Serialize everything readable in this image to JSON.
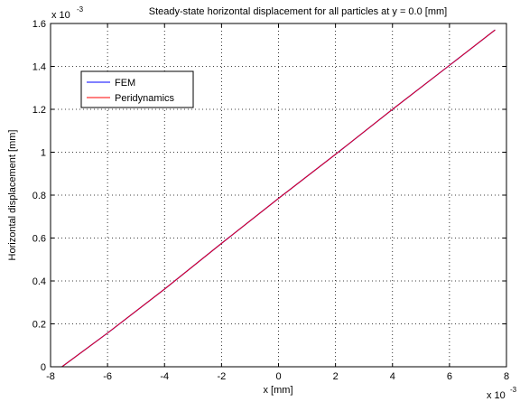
{
  "chart_data": {
    "type": "line",
    "title": "Steady-state horizontal displacement for all particles at y = 0.0 [mm]",
    "xlabel": "x [mm]",
    "ylabel": "Horizontal displacement [mm]",
    "x_multiplier": {
      "base": "x 10",
      "exp": "-3"
    },
    "y_multiplier": {
      "base": "x 10",
      "exp": "-3"
    },
    "xlim": [
      -8,
      8
    ],
    "ylim": [
      0,
      1.6
    ],
    "xticks": [
      -8,
      -6,
      -4,
      -2,
      0,
      2,
      4,
      6,
      8
    ],
    "yticks": [
      0,
      0.2,
      0.4,
      0.6,
      0.8,
      1,
      1.2,
      1.4,
      1.6
    ],
    "xtick_labels": [
      "-8",
      "-6",
      "-4",
      "-2",
      "0",
      "2",
      "4",
      "6",
      "8"
    ],
    "ytick_labels": [
      "0",
      "0.2",
      "0.4",
      "0.6",
      "0.8",
      "1",
      "1.2",
      "1.4",
      "1.6"
    ],
    "grid": true,
    "legend_position": "top-left",
    "series": [
      {
        "name": "FEM",
        "color": "#0000ff",
        "x": [
          -7.6,
          -6,
          -4,
          -2,
          0,
          2,
          4,
          6,
          7.6
        ],
        "values": [
          0.0,
          0.157,
          0.362,
          0.575,
          0.785,
          0.99,
          1.2,
          1.405,
          1.57
        ]
      },
      {
        "name": "Peridynamics",
        "color": "#ff0000",
        "x": [
          -7.6,
          -6,
          -4,
          -2,
          0,
          2,
          4,
          6,
          7.6
        ],
        "values": [
          0.0,
          0.157,
          0.362,
          0.575,
          0.785,
          0.99,
          1.2,
          1.405,
          1.57
        ]
      }
    ]
  }
}
